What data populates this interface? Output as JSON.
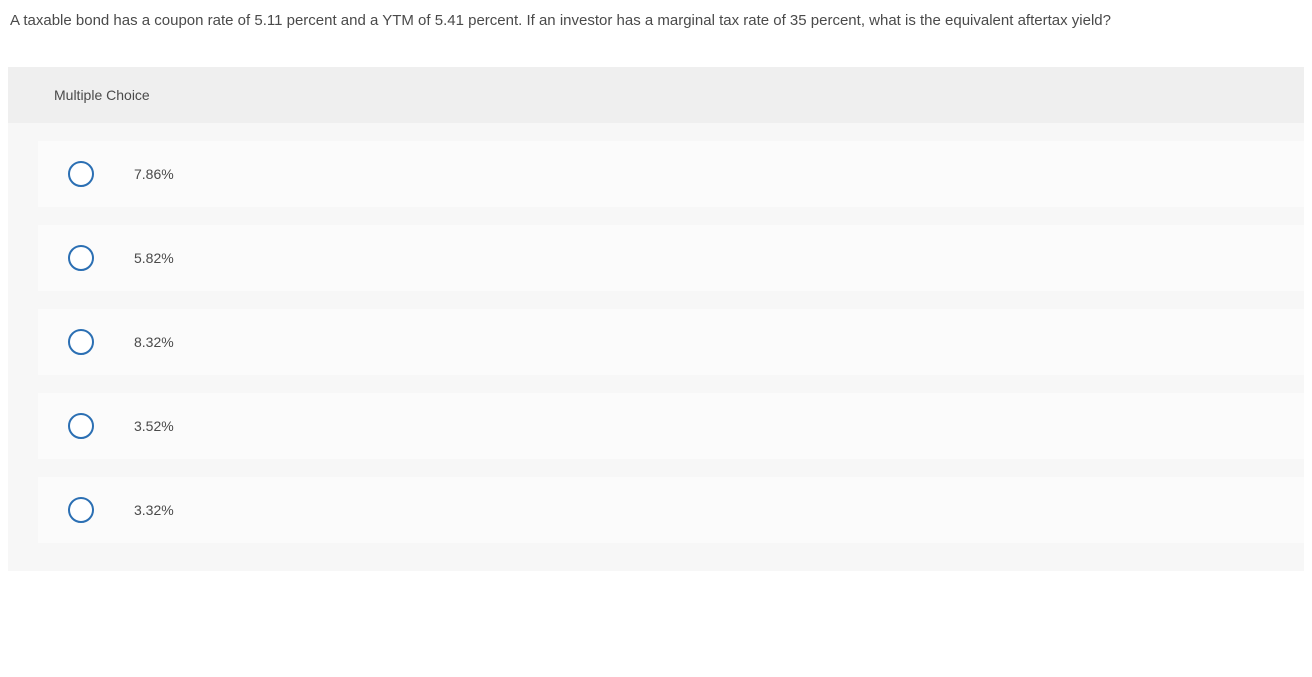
{
  "question": {
    "text": "A taxable bond has a coupon rate of 5.11 percent and a YTM of 5.41 percent. If an investor has a marginal tax rate of 35 percent, what is the equivalent aftertax yield?"
  },
  "mc": {
    "heading": "Multiple Choice",
    "options": [
      {
        "label": "7.86%"
      },
      {
        "label": "5.82%"
      },
      {
        "label": "8.32%"
      },
      {
        "label": "3.52%"
      },
      {
        "label": "3.32%"
      }
    ]
  },
  "colors": {
    "radio_border": "#2b6fb3",
    "option_bg": "#fbfbfb",
    "container_bg": "#f7f7f7",
    "header_bg": "#efefef",
    "text": "#4a4a4a"
  }
}
